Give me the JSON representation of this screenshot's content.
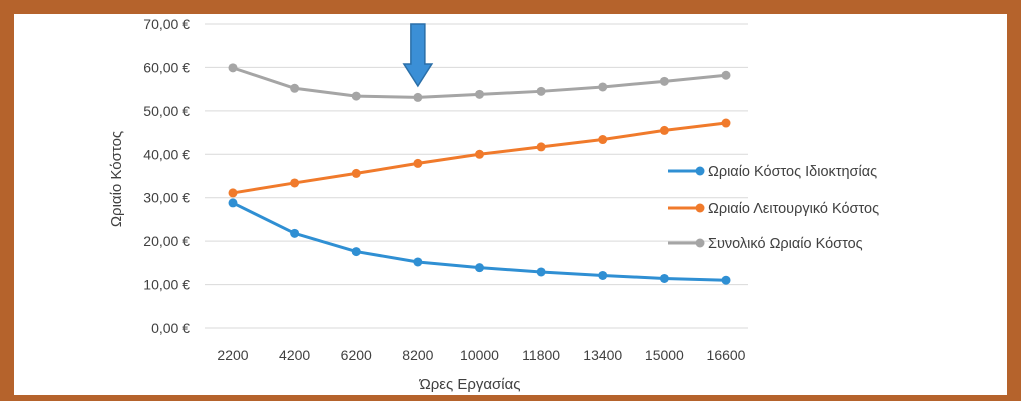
{
  "chart_data": {
    "type": "line",
    "title": "",
    "xlabel": "Ώρες Εργασίας",
    "ylabel": "Ωριαίο Κόστος",
    "categories": [
      "2200",
      "4200",
      "6200",
      "8200",
      "10000",
      "11800",
      "13400",
      "15000",
      "16600"
    ],
    "y_ticks": [
      "0,00 €",
      "10,00 €",
      "20,00 €",
      "30,00 €",
      "40,00 €",
      "50,00 €",
      "60,00 €",
      "70,00 €"
    ],
    "ylim": [
      0,
      70
    ],
    "grid": "horizontal",
    "legend_position": "right",
    "series": [
      {
        "name": "Ωριαίο Κόστος Ιδιοκτησίας",
        "color": "#2f8fd3",
        "values": [
          28.8,
          21.8,
          17.6,
          15.2,
          13.9,
          12.9,
          12.1,
          11.4,
          11.0
        ]
      },
      {
        "name": "Ωριαίο Λειτουργικό Κόστος",
        "color": "#f07a2b",
        "values": [
          31.1,
          33.4,
          35.6,
          37.9,
          40.0,
          41.7,
          43.4,
          45.5,
          47.2
        ]
      },
      {
        "name": "Συνολικό Ωριαίο Κόστος",
        "color": "#a5a5a5",
        "values": [
          59.9,
          55.2,
          53.4,
          53.1,
          53.8,
          54.5,
          55.5,
          56.8,
          58.2
        ]
      }
    ],
    "annotation": {
      "type": "arrow",
      "direction": "down",
      "at_category": "8200",
      "icon": "down-arrow-icon",
      "color": "#3b8fd6"
    }
  }
}
